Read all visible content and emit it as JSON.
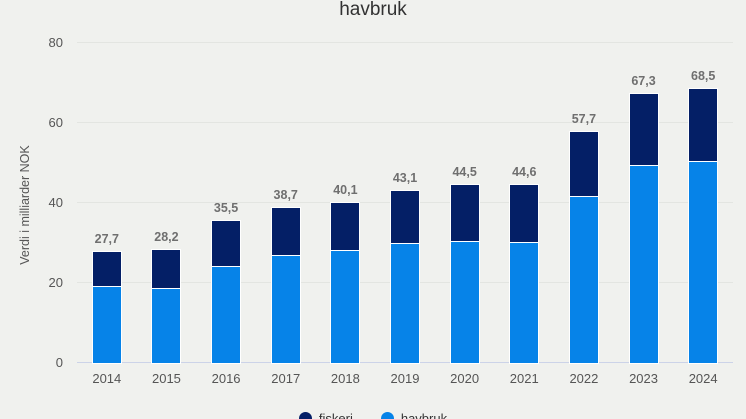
{
  "title": "havbruk",
  "y_axis": {
    "label": "Verdi i milliarder NOK",
    "ticks": [
      0,
      20,
      40,
      60,
      80
    ]
  },
  "legend": {
    "items": [
      {
        "label": "fiskeri",
        "color": "#041f66"
      },
      {
        "label": "havbruk",
        "color": "#0683e8"
      }
    ]
  },
  "chart_data": {
    "type": "bar",
    "stacked": true,
    "title": "havbruk",
    "ylabel": "Verdi i milliarder NOK",
    "ylim": [
      0,
      80
    ],
    "grid": true,
    "legend_position": "bottom",
    "categories": [
      "2014",
      "2015",
      "2016",
      "2017",
      "2018",
      "2019",
      "2020",
      "2021",
      "2022",
      "2023",
      "2024"
    ],
    "series": [
      {
        "name": "havbruk",
        "color": "#0683e8",
        "values": [
          19.2,
          18.7,
          24.2,
          27.0,
          28.3,
          30.0,
          30.5,
          30.2,
          41.7,
          49.5,
          50.6
        ]
      },
      {
        "name": "fiskeri",
        "color": "#041f66",
        "values": [
          8.5,
          9.5,
          11.3,
          11.7,
          11.8,
          13.1,
          14.0,
          14.4,
          16.0,
          17.8,
          17.9
        ]
      }
    ],
    "totals": [
      27.7,
      28.2,
      35.5,
      38.7,
      40.1,
      43.1,
      44.5,
      44.6,
      57.7,
      67.3,
      68.5
    ],
    "total_labels": [
      "27,7",
      "28,2",
      "35,5",
      "38,7",
      "40,1",
      "43,1",
      "44,5",
      "44,6",
      "57,7",
      "67,3",
      "68,5"
    ]
  },
  "colors": {
    "background": "#f0f1ee",
    "gridline": "#e3e5e1",
    "baseline": "#ccd3e8",
    "bar_border": "#ffffff",
    "data_label": "#6f6f6f",
    "axis_text": "#565656",
    "title_text": "#323232"
  }
}
